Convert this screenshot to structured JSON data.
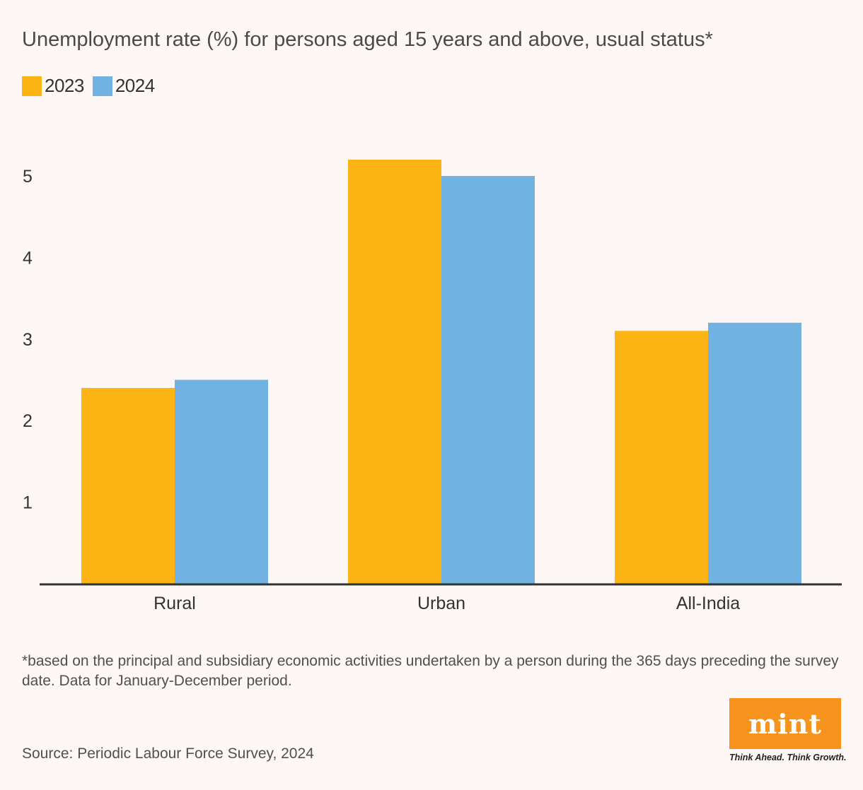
{
  "title": "Unemployment rate (%) for persons aged 15 years and above, usual status*",
  "legend": [
    {
      "label": "2023",
      "color": "#fdb415"
    },
    {
      "label": "2024",
      "color": "#72b2e2"
    }
  ],
  "footnote": "*based on the principal and subsidiary economic activities undertaken by a person during the 365 days preceding the survey date. Data for January-December period.",
  "source": "Source: Periodic Labour Force Survey, 2024",
  "brand": {
    "logo_text": "mint",
    "tagline": "Think Ahead. Think Growth.",
    "logo_color": "#f7941d"
  },
  "chart_data": {
    "type": "bar",
    "categories": [
      "Rural",
      "Urban",
      "All-India"
    ],
    "series": [
      {
        "name": "2023",
        "values": [
          2.4,
          5.2,
          3.1
        ],
        "color": "#fdb415"
      },
      {
        "name": "2024",
        "values": [
          2.5,
          5.0,
          3.2
        ],
        "color": "#72b2e2"
      }
    ],
    "yticks": [
      1,
      2,
      3,
      4,
      5
    ],
    "ylim": [
      0,
      5.5
    ],
    "xlabel": "",
    "ylabel": "",
    "grid": false,
    "legend_position": "top-left"
  }
}
